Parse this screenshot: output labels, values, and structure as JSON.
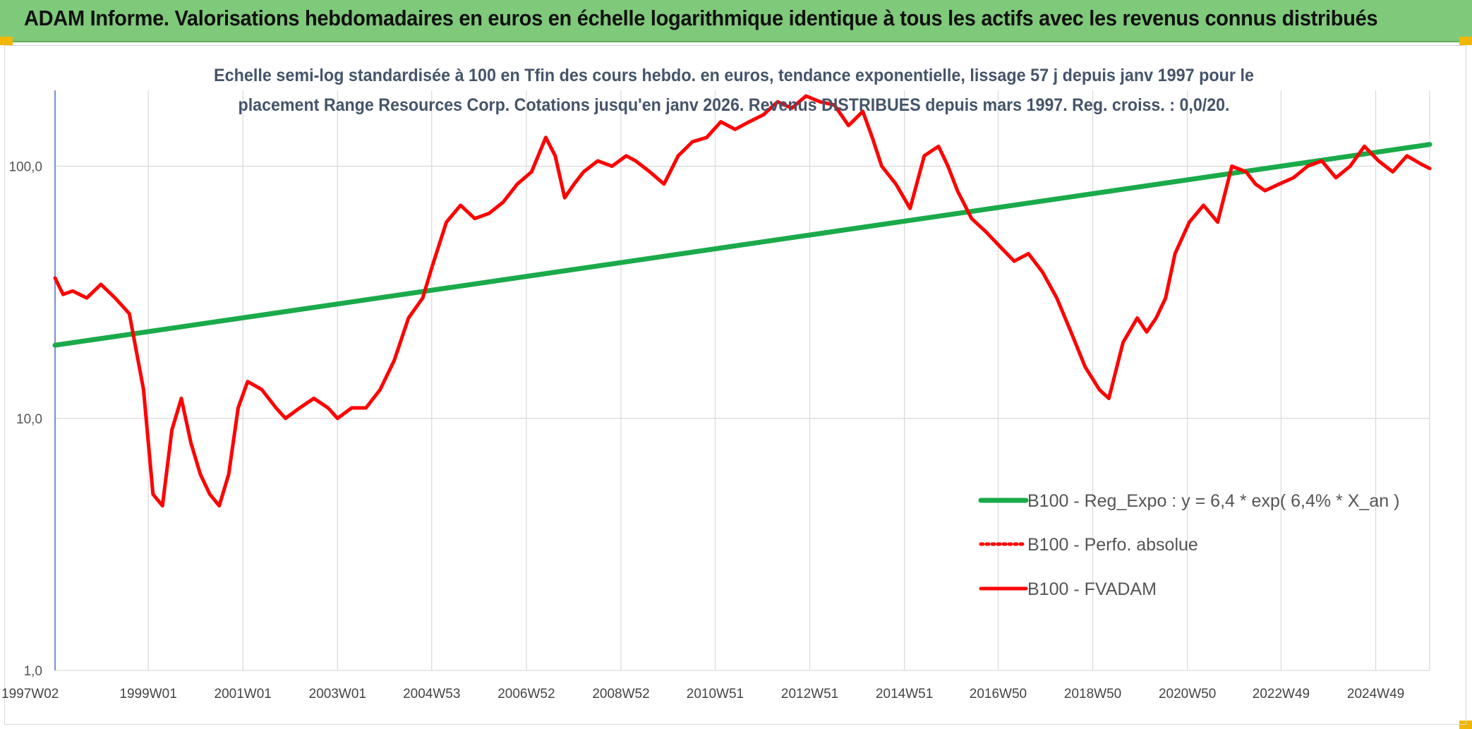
{
  "header": {
    "title": "ADAM Informe. Valorisations hebdomadaires en euros en échelle logarithmique identique à tous les actifs avec les revenus connus distribués"
  },
  "colors": {
    "header_bg": "#7fc97a",
    "regression": "#1aaa4a",
    "fvadam": "#ff0000",
    "perfo": "#ff0000",
    "grid": "#d9d9d9",
    "corner": "#f2b705"
  },
  "chart_data": {
    "type": "line",
    "title_lines": [
      "Echelle semi-log standardisée à 100 en Tfin des cours hebdo. en euros, tendance exponentielle, lissage 57 j depuis janv 1997 pour le",
      "placement Range Resources Corp. Cotations jusqu'en janv 2026. Revenus DISTRIBUES depuis mars 1997. Reg. croiss. : 0,0/20."
    ],
    "y_scale": "log",
    "ylim": [
      1,
      200
    ],
    "y_ticks": [
      {
        "value": 1,
        "label": "1,0"
      },
      {
        "value": 10,
        "label": "10,0"
      },
      {
        "value": 100,
        "label": "100,0"
      }
    ],
    "xlim": [
      1997.03,
      2026.08
    ],
    "x_ticks": [
      {
        "x": 1997.03,
        "label": "1997W02"
      },
      {
        "x": 1999.0,
        "label": "1999W01"
      },
      {
        "x": 2001.0,
        "label": "2001W01"
      },
      {
        "x": 2003.0,
        "label": "2003W01"
      },
      {
        "x": 2004.99,
        "label": "2004W53"
      },
      {
        "x": 2006.99,
        "label": "2006W52"
      },
      {
        "x": 2008.99,
        "label": "2008W52"
      },
      {
        "x": 2010.98,
        "label": "2010W51"
      },
      {
        "x": 2012.98,
        "label": "2012W51"
      },
      {
        "x": 2014.98,
        "label": "2014W51"
      },
      {
        "x": 2016.96,
        "label": "2016W50"
      },
      {
        "x": 2018.96,
        "label": "2018W50"
      },
      {
        "x": 2020.96,
        "label": "2020W50"
      },
      {
        "x": 2022.94,
        "label": "2022W49"
      },
      {
        "x": 2024.94,
        "label": "2024W49"
      }
    ],
    "grid": true,
    "legend_position": "right",
    "series": [
      {
        "name": "B100 - Reg_Expo : y = 6,4 * exp( 6,4% *  X_an )",
        "color": "#1aaa4a",
        "style": "solid",
        "x": [
          1997.03,
          2026.08
        ],
        "y": [
          19.5,
          122
        ]
      },
      {
        "name": "B100 - Perfo. absolue",
        "color": "#ff0000",
        "style": "dotted",
        "x": [],
        "y": []
      },
      {
        "name": "B100 - FVADAM",
        "color": "#ff0000",
        "style": "solid",
        "x": [
          1997.03,
          1997.2,
          1997.4,
          1997.7,
          1998.0,
          1998.3,
          1998.6,
          1998.9,
          1999.1,
          1999.3,
          1999.5,
          1999.7,
          1999.9,
          2000.1,
          2000.3,
          2000.5,
          2000.7,
          2000.9,
          2001.1,
          2001.4,
          2001.7,
          2001.9,
          2002.2,
          2002.5,
          2002.8,
          2003.0,
          2003.3,
          2003.6,
          2003.9,
          2004.2,
          2004.5,
          2004.8,
          2005.0,
          2005.3,
          2005.6,
          2005.9,
          2006.2,
          2006.5,
          2006.8,
          2007.1,
          2007.4,
          2007.6,
          2007.8,
          2008.0,
          2008.2,
          2008.5,
          2008.8,
          2009.1,
          2009.3,
          2009.6,
          2009.9,
          2010.2,
          2010.5,
          2010.8,
          2011.1,
          2011.4,
          2011.7,
          2012.0,
          2012.3,
          2012.6,
          2012.9,
          2013.2,
          2013.5,
          2013.8,
          2014.1,
          2014.3,
          2014.5,
          2014.8,
          2015.1,
          2015.4,
          2015.7,
          2015.9,
          2016.1,
          2016.4,
          2016.7,
          2017.0,
          2017.3,
          2017.6,
          2017.9,
          2018.2,
          2018.5,
          2018.8,
          2019.1,
          2019.3,
          2019.6,
          2019.9,
          2020.1,
          2020.3,
          2020.5,
          2020.7,
          2021.0,
          2021.3,
          2021.6,
          2021.9,
          2022.2,
          2022.4,
          2022.6,
          2022.9,
          2023.2,
          2023.5,
          2023.8,
          2024.1,
          2024.4,
          2024.7,
          2025.0,
          2025.3,
          2025.6,
          2025.9,
          2026.08
        ],
        "y": [
          36,
          31,
          32,
          30,
          34,
          30,
          26,
          13,
          5,
          4.5,
          9,
          12,
          8,
          6,
          5,
          4.5,
          6,
          11,
          14,
          13,
          11,
          10,
          11,
          12,
          11,
          10,
          11,
          11,
          13,
          17,
          25,
          30,
          40,
          60,
          70,
          62,
          65,
          72,
          85,
          95,
          130,
          110,
          75,
          85,
          95,
          105,
          100,
          110,
          105,
          95,
          85,
          110,
          125,
          130,
          150,
          140,
          150,
          160,
          180,
          170,
          190,
          180,
          175,
          145,
          165,
          130,
          100,
          85,
          68,
          110,
          120,
          100,
          80,
          62,
          55,
          48,
          42,
          45,
          38,
          30,
          22,
          16,
          13,
          12,
          20,
          25,
          22,
          25,
          30,
          45,
          60,
          70,
          60,
          100,
          95,
          85,
          80,
          85,
          90,
          100,
          105,
          90,
          100,
          120,
          105,
          95,
          110,
          102,
          98
        ]
      }
    ]
  }
}
